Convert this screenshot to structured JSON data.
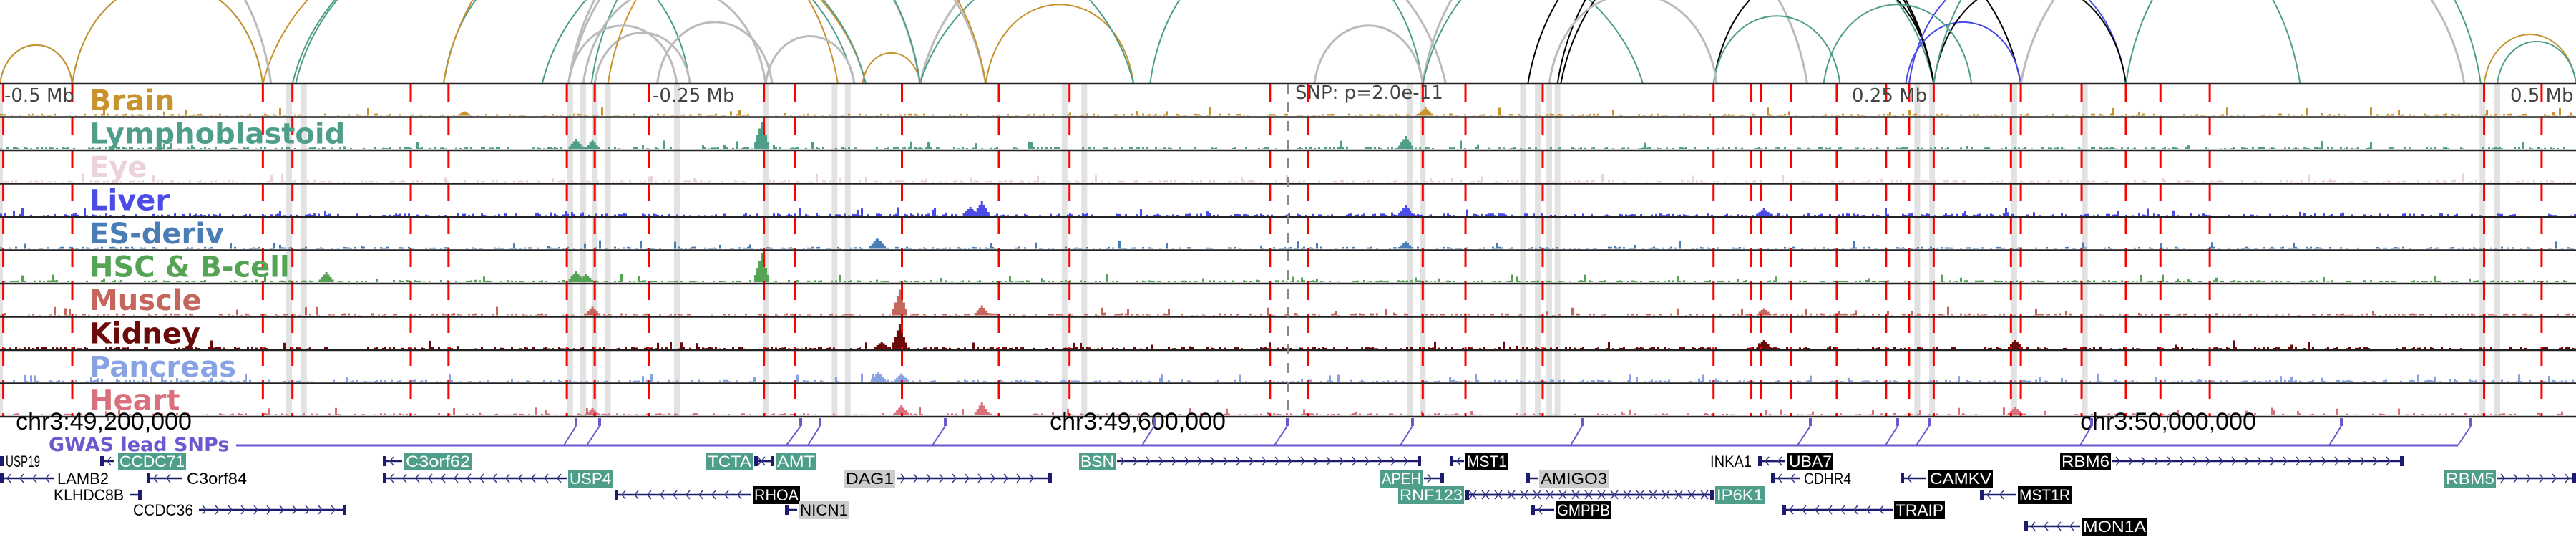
{
  "axis": {
    "left_label": "-0.5 Mb",
    "left_mid_label": "-0.25 Mb",
    "center_label": "SNP: p=2.0e-11",
    "right_mid_label": "0.25 Mb",
    "right_label": "0.5 Mb"
  },
  "tracks": [
    {
      "name": "Brain",
      "color": "#c8922c"
    },
    {
      "name": "Lymphoblastoid",
      "color": "#4e9e8a"
    },
    {
      "name": "Eye",
      "color": "#ecd2dc"
    },
    {
      "name": "Liver",
      "color": "#4b4be6"
    },
    {
      "name": "ES-deriv",
      "color": "#4a7db6"
    },
    {
      "name": "HSC & B-cell",
      "color": "#55a455"
    },
    {
      "name": "Muscle",
      "color": "#c4665c"
    },
    {
      "name": "Kidney",
      "color": "#6b0a0a"
    },
    {
      "name": "Pancreas",
      "color": "#88a3e3"
    },
    {
      "name": "Heart",
      "color": "#d9707c"
    }
  ],
  "coordinates": [
    "chr3:49,200,000",
    "chr3:49,600,000",
    "chr3:50,000,000"
  ],
  "gwas": {
    "label": "GWAS lead SNPs",
    "color": "#6a5acd",
    "snp_count": 15
  },
  "colors": {
    "gene": "#1c1c6e",
    "highlight_box": "#4e9e8a",
    "black_box": "#000000",
    "gray_box": "#cccccc",
    "red_line": "#ff0000",
    "gray_band": "#e2e2e2"
  },
  "genes": [
    {
      "name": "USP19",
      "style": "plain",
      "strand": "-"
    },
    {
      "name": "CCDC71",
      "style": "teal",
      "strand": "-"
    },
    {
      "name": "C3orf62",
      "style": "teal",
      "strand": "-"
    },
    {
      "name": "TCTA",
      "style": "teal",
      "strand": "+"
    },
    {
      "name": "AMT",
      "style": "teal",
      "strand": "-"
    },
    {
      "name": "BSN",
      "style": "teal",
      "strand": "+"
    },
    {
      "name": "MST1",
      "style": "black",
      "strand": "-"
    },
    {
      "name": "INKA1",
      "style": "plain",
      "strand": "-"
    },
    {
      "name": "UBA7",
      "style": "black",
      "strand": "-"
    },
    {
      "name": "RBM6",
      "style": "black",
      "strand": "+"
    },
    {
      "name": "LAMB2",
      "style": "plain",
      "strand": "-"
    },
    {
      "name": "C3orf84",
      "style": "plain",
      "strand": "-"
    },
    {
      "name": "USP4",
      "style": "teal",
      "strand": "-"
    },
    {
      "name": "DAG1",
      "style": "gray",
      "strand": "+"
    },
    {
      "name": "APEH",
      "style": "teal",
      "strand": "+"
    },
    {
      "name": "AMIGO3",
      "style": "gray",
      "strand": "-"
    },
    {
      "name": "CDHR4",
      "style": "plain",
      "strand": "-"
    },
    {
      "name": "CAMKV",
      "style": "black",
      "strand": "-"
    },
    {
      "name": "RBM5",
      "style": "teal",
      "strand": "+"
    },
    {
      "name": "KLHDC8B",
      "style": "plain",
      "strand": "+"
    },
    {
      "name": "RHOA",
      "style": "black",
      "strand": "-"
    },
    {
      "name": "RNF123",
      "style": "teal",
      "strand": "+"
    },
    {
      "name": "IP6K1",
      "style": "teal",
      "strand": "-"
    },
    {
      "name": "MST1R",
      "style": "black",
      "strand": "-"
    },
    {
      "name": "CCDC36",
      "style": "plain",
      "strand": "+"
    },
    {
      "name": "NICN1",
      "style": "gray",
      "strand": "-"
    },
    {
      "name": "GMPPB",
      "style": "black",
      "strand": "-"
    },
    {
      "name": "TRAIP",
      "style": "black",
      "strand": "-"
    },
    {
      "name": "MON1A",
      "style": "black",
      "strand": "-"
    }
  ]
}
